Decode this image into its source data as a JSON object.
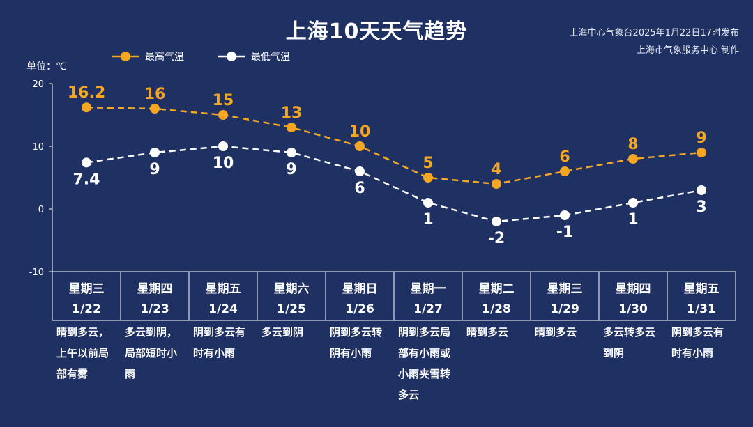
{
  "header": {
    "title": "上海10天天气趋势",
    "issuer": "上海中心气象台2025年1月22日17时发布",
    "producer": "上海市气象服务中心 制作",
    "unit": "单位：℃"
  },
  "colors": {
    "background": "#1f3163",
    "high": "#f5a623",
    "low": "#ffffff",
    "axis": "#ffffff"
  },
  "chart_data": {
    "type": "line",
    "ylim": [
      -10,
      20
    ],
    "yticks": [
      "20",
      "10",
      "0",
      "-10"
    ],
    "ytick_values": [
      20,
      10,
      0,
      -10
    ],
    "series": [
      {
        "name": "最高气温",
        "values": [
          16.2,
          16,
          15,
          13,
          10,
          5,
          4,
          6,
          8,
          9
        ],
        "labels": [
          "16.2",
          "16",
          "15",
          "13",
          "10",
          "5",
          "4",
          "6",
          "8",
          "9"
        ]
      },
      {
        "name": "最低气温",
        "values": [
          7.4,
          9,
          10,
          9,
          6,
          1,
          -2,
          -1,
          1,
          3
        ],
        "labels": [
          "7.4",
          "9",
          "10",
          "9",
          "6",
          "1",
          "-2",
          "-1",
          "1",
          "3"
        ]
      }
    ],
    "days": [
      {
        "weekday": "星期三",
        "date": "1/22",
        "weather": [
          "晴到多云，",
          "上午以前局",
          "部有雾"
        ]
      },
      {
        "weekday": "星期四",
        "date": "1/23",
        "weather": [
          "多云到阴，",
          "局部短时小",
          "雨"
        ]
      },
      {
        "weekday": "星期五",
        "date": "1/24",
        "weather": [
          "阴到多云有",
          "时有小雨"
        ]
      },
      {
        "weekday": "星期六",
        "date": "1/25",
        "weather": [
          "多云到阴"
        ]
      },
      {
        "weekday": "星期日",
        "date": "1/26",
        "weather": [
          "阴到多云转",
          "阴有小雨"
        ]
      },
      {
        "weekday": "星期一",
        "date": "1/27",
        "weather": [
          "阴到多云局",
          "部有小雨或",
          "小雨夹雪转",
          "多云"
        ]
      },
      {
        "weekday": "星期二",
        "date": "1/28",
        "weather": [
          "晴到多云"
        ]
      },
      {
        "weekday": "星期三",
        "date": "1/29",
        "weather": [
          "晴到多云"
        ]
      },
      {
        "weekday": "星期四",
        "date": "1/30",
        "weather": [
          "多云转多云",
          "到阴"
        ]
      },
      {
        "weekday": "星期五",
        "date": "1/31",
        "weather": [
          "阴到多云有",
          "时有小雨"
        ]
      }
    ]
  }
}
